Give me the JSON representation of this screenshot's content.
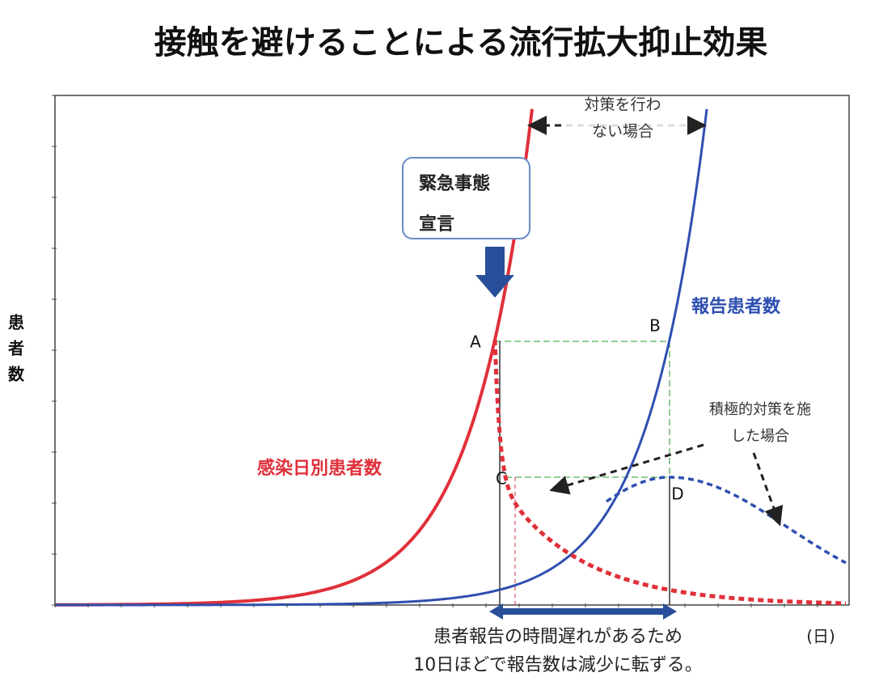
{
  "title": "接触を避けることによる流行拡大抑止効果",
  "y_axis_label": "患者数",
  "x_axis_unit": "(日)",
  "no_measures_label": [
    "対策を行わ",
    "ない場合"
  ],
  "emergency_box": [
    "緊急事態",
    "宣言"
  ],
  "reported_label": "報告患者数",
  "infection_label": "感染日別患者数",
  "measures_label": [
    "積極的対策を施",
    "した場合"
  ],
  "points": [
    "A",
    "B",
    "C",
    "D"
  ],
  "caption": [
    "患者報告の時間遅れがあるため",
    "10日ほどで報告数は減少に転ずる。"
  ]
}
